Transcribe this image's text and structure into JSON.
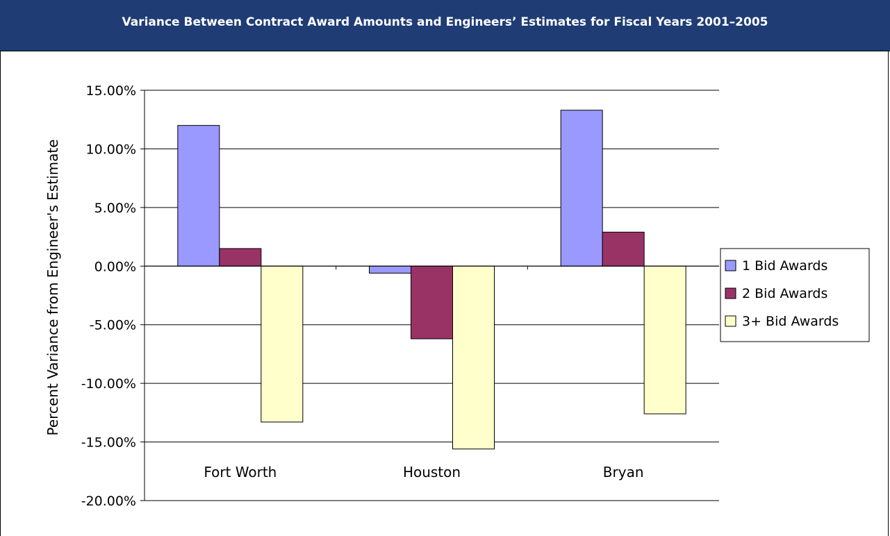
{
  "header": {
    "title": "Variance Between Contract Award Amounts and Engineers’ Estimates for Fiscal Years 2001–2005"
  },
  "colors": {
    "header_bg": "#1f3c75",
    "one_bid": "#9999ff",
    "two_bid": "#993366",
    "three_bid": "#ffffcc"
  },
  "chart_data": {
    "type": "bar",
    "title": "Variance Between Contract Award Amounts and Engineers’ Estimates for Fiscal Years 2001–2005",
    "xlabel": "",
    "ylabel": "Percent Variance from Engineer's Estimate",
    "categories": [
      "Fort Worth",
      "Houston",
      "Bryan"
    ],
    "series": [
      {
        "name": "1 Bid Awards",
        "color": "#9999ff",
        "values": [
          12.0,
          -0.6,
          13.3
        ]
      },
      {
        "name": "2 Bid Awards",
        "color": "#993366",
        "values": [
          1.5,
          -6.2,
          2.9
        ]
      },
      {
        "name": "3+ Bid Awards",
        "color": "#ffffcc",
        "values": [
          -13.3,
          -15.6,
          -12.6
        ]
      }
    ],
    "ylim": [
      -20,
      15
    ],
    "yticks": [
      "15.00%",
      "10.00%",
      "5.00%",
      "0.00%",
      "-5.00%",
      "-10.00%",
      "-15.00%",
      "-20.00%"
    ],
    "ytick_values": [
      15,
      10,
      5,
      0,
      -5,
      -10,
      -15,
      -20
    ],
    "grid": true,
    "legend_position": "right"
  }
}
